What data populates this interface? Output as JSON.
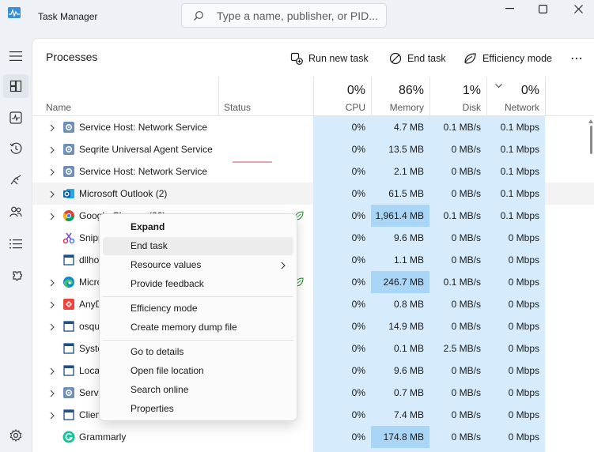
{
  "window": {
    "title": "Task Manager",
    "search_placeholder": "Type a name, publisher, or PID..."
  },
  "nav": {
    "items": [
      "processes-icon",
      "performance-icon",
      "app-history-icon",
      "startup-apps-icon",
      "users-icon",
      "details-icon",
      "services-icon"
    ],
    "settings": "settings-icon"
  },
  "toolbar": {
    "page_title": "Processes",
    "run_new_task": "Run new task",
    "end_task": "End task",
    "efficiency_mode": "Efficiency mode",
    "more": "⋯"
  },
  "columns": {
    "name": "Name",
    "status": "Status",
    "cpu": {
      "pct": "0%",
      "label": "CPU"
    },
    "memory": {
      "pct": "86%",
      "label": "Memory"
    },
    "disk": {
      "pct": "1%",
      "label": "Disk"
    },
    "network": {
      "pct": "0%",
      "label": "Network"
    }
  },
  "rows": [
    {
      "name": "Service Host: Network Service",
      "icon": "gear-icon",
      "expandable": true,
      "cpu": "0%",
      "memory": "4.7 MB",
      "disk": "0.1 MB/s",
      "network": "0.1 Mbps"
    },
    {
      "name": "Seqrite Universal Agent Service",
      "icon": "gear-icon",
      "expandable": true,
      "cpu": "0%",
      "memory": "13.5 MB",
      "disk": "0 MB/s",
      "network": "0.1 Mbps"
    },
    {
      "name": "Service Host: Network Service",
      "icon": "gear-icon",
      "expandable": true,
      "cpu": "0%",
      "memory": "2.1 MB",
      "disk": "0 MB/s",
      "network": "0.1 Mbps"
    },
    {
      "name": "Microsoft Outlook (2)",
      "icon": "outlook-icon",
      "expandable": true,
      "cpu": "0%",
      "memory": "61.5 MB",
      "disk": "0 MB/s",
      "network": "0.1 Mbps"
    },
    {
      "name": "Google Chrome (60)",
      "icon": "chrome-icon",
      "expandable": true,
      "cpu": "0%",
      "memory": "1,961.4 MB",
      "disk": "0.1 MB/s",
      "network": "0.1 Mbps"
    },
    {
      "name": "Snipping Tool",
      "icon": "snipping-icon",
      "expandable": false,
      "cpu": "0%",
      "memory": "9.6 MB",
      "disk": "0 MB/s",
      "network": "0 Mbps"
    },
    {
      "name": "dllhost",
      "icon": "app-window-icon",
      "expandable": false,
      "cpu": "0%",
      "memory": "1.1 MB",
      "disk": "0 MB/s",
      "network": "0 Mbps"
    },
    {
      "name": "Microsoft Edge",
      "icon": "edge-icon",
      "expandable": true,
      "cpu": "0%",
      "memory": "246.7 MB",
      "disk": "0.1 MB/s",
      "network": "0 Mbps"
    },
    {
      "name": "AnyDesk",
      "icon": "anydesk-icon",
      "expandable": true,
      "cpu": "0%",
      "memory": "0.8 MB",
      "disk": "0 MB/s",
      "network": "0 Mbps"
    },
    {
      "name": "osquery",
      "icon": "app-window-icon",
      "expandable": true,
      "cpu": "0%",
      "memory": "14.9 MB",
      "disk": "0 MB/s",
      "network": "0 Mbps"
    },
    {
      "name": "System",
      "icon": "app-window-icon",
      "expandable": false,
      "cpu": "0%",
      "memory": "0.1 MB",
      "disk": "2.5 MB/s",
      "network": "0 Mbps"
    },
    {
      "name": "Local",
      "icon": "app-window-icon",
      "expandable": true,
      "cpu": "0%",
      "memory": "9.6 MB",
      "disk": "0 MB/s",
      "network": "0 Mbps"
    },
    {
      "name": "Service",
      "icon": "gear-icon",
      "expandable": true,
      "cpu": "0%",
      "memory": "0.7 MB",
      "disk": "0 MB/s",
      "network": "0 Mbps"
    },
    {
      "name": "Client",
      "icon": "app-window-icon",
      "expandable": true,
      "cpu": "0%",
      "memory": "7.4 MB",
      "disk": "0 MB/s",
      "network": "0 Mbps"
    },
    {
      "name": "Grammarly",
      "icon": "grammarly-icon",
      "expandable": false,
      "cpu": "0%",
      "memory": "174.8 MB",
      "disk": "0 MB/s",
      "network": "0 Mbps"
    }
  ],
  "visible_names": [
    "Service Host: Network Service",
    "Seqrite Universal Agent Service",
    "Service Host: Network Service",
    "Microsoft Outlook (2)",
    "Google Chrome (60)",
    "Snipp",
    "dllho",
    "Micro",
    "AnyD",
    "osqu",
    "Syste",
    "Local",
    "Servic",
    "Clien",
    "Grammarly"
  ],
  "context_menu": {
    "items": [
      "Expand",
      "End task",
      "Resource values",
      "Provide feedback",
      "Efficiency mode",
      "Create memory dump file",
      "Go to details",
      "Open file location",
      "Search online",
      "Properties"
    ]
  },
  "colors": {
    "column_bg": "#d6ebfb",
    "column_hi": "#a9d5f6",
    "window_bg": "#eef1f6"
  }
}
